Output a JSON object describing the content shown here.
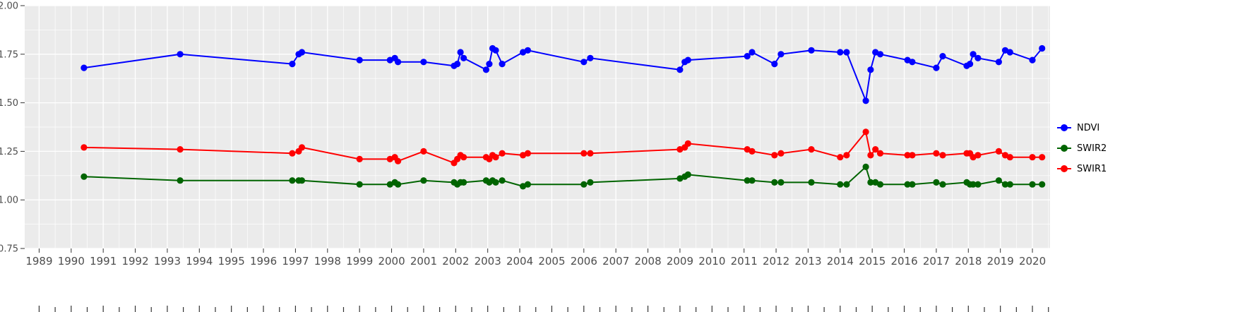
{
  "chart_data": {
    "type": "line",
    "title": "",
    "xlabel": "",
    "ylabel": "",
    "grid": true,
    "legend_position": "right",
    "panel_background": "#ebebeb",
    "figure_background": "#ffffff",
    "gridline_color": "#ffffff",
    "tick_color": "#333333",
    "tick_label_color": "#4d4d4d",
    "xlim": [
      1988.55,
      2020.55
    ],
    "ylim": [
      0.75,
      2.0
    ],
    "x_tick_values": [
      1989,
      1990,
      1991,
      1992,
      1993,
      1994,
      1995,
      1996,
      1997,
      1998,
      1999,
      2000,
      2001,
      2002,
      2003,
      2004,
      2005,
      2006,
      2007,
      2008,
      2009,
      2010,
      2011,
      2012,
      2013,
      2014,
      2015,
      2016,
      2017,
      2018,
      2019,
      2020
    ],
    "x_tick_labels": [
      "1989",
      "1990",
      "1991",
      "1992",
      "1993",
      "1994",
      "1995",
      "1996",
      "1997",
      "1998",
      "1999",
      "2000",
      "2001",
      "2002",
      "2003",
      "2004",
      "2005",
      "2006",
      "2007",
      "2008",
      "2009",
      "2010",
      "2011",
      "2012",
      "2013",
      "2014",
      "2015",
      "2016",
      "2017",
      "2018",
      "2019",
      "2020"
    ],
    "y_tick_values": [
      2.0,
      1.75,
      1.5,
      1.25,
      1.0,
      0.75
    ],
    "y_tick_labels": [
      "2.00",
      "1.75",
      "1.50",
      "1.25",
      "1.00",
      "0.75"
    ],
    "x": [
      1990.4,
      1993.4,
      1996.9,
      1997.1,
      1997.2,
      1999.0,
      1999.95,
      2000.1,
      2000.2,
      2001.0,
      2001.95,
      2002.05,
      2002.15,
      2002.25,
      2002.95,
      2003.05,
      2003.15,
      2003.25,
      2003.45,
      2004.1,
      2004.25,
      2006.0,
      2006.2,
      2009.0,
      2009.15,
      2009.25,
      2011.1,
      2011.25,
      2011.95,
      2012.15,
      2013.1,
      2014.0,
      2014.2,
      2014.8,
      2014.95,
      2015.1,
      2015.25,
      2016.1,
      2016.25,
      2017.0,
      2017.2,
      2017.95,
      2018.05,
      2018.15,
      2018.3,
      2018.95,
      2019.15,
      2019.3,
      2020.0,
      2020.3
    ],
    "series": [
      {
        "name": "NDVI",
        "color": "#0000ff",
        "values": [
          1.68,
          1.75,
          1.7,
          1.75,
          1.76,
          1.72,
          1.72,
          1.73,
          1.71,
          1.71,
          1.69,
          1.7,
          1.76,
          1.73,
          1.67,
          1.7,
          1.78,
          1.77,
          1.7,
          1.76,
          1.77,
          1.71,
          1.73,
          1.67,
          1.71,
          1.72,
          1.74,
          1.76,
          1.7,
          1.75,
          1.77,
          1.76,
          1.76,
          1.51,
          1.67,
          1.76,
          1.75,
          1.72,
          1.71,
          1.68,
          1.74,
          1.69,
          1.7,
          1.75,
          1.73,
          1.71,
          1.77,
          1.76,
          1.72,
          1.78
        ]
      },
      {
        "name": "SWIR2",
        "color": "#006400",
        "values": [
          1.12,
          1.1,
          1.1,
          1.1,
          1.1,
          1.08,
          1.08,
          1.09,
          1.08,
          1.1,
          1.09,
          1.08,
          1.09,
          1.09,
          1.1,
          1.09,
          1.1,
          1.09,
          1.1,
          1.07,
          1.08,
          1.08,
          1.09,
          1.11,
          1.12,
          1.13,
          1.1,
          1.1,
          1.09,
          1.09,
          1.09,
          1.08,
          1.08,
          1.17,
          1.09,
          1.09,
          1.08,
          1.08,
          1.08,
          1.09,
          1.08,
          1.09,
          1.08,
          1.08,
          1.08,
          1.1,
          1.08,
          1.08,
          1.08,
          1.08
        ]
      },
      {
        "name": "SWIR1",
        "color": "#ff0000",
        "values": [
          1.27,
          1.26,
          1.24,
          1.25,
          1.27,
          1.21,
          1.21,
          1.22,
          1.2,
          1.25,
          1.19,
          1.21,
          1.23,
          1.22,
          1.22,
          1.21,
          1.23,
          1.22,
          1.24,
          1.23,
          1.24,
          1.24,
          1.24,
          1.26,
          1.27,
          1.29,
          1.26,
          1.25,
          1.23,
          1.24,
          1.26,
          1.22,
          1.23,
          1.35,
          1.23,
          1.26,
          1.24,
          1.23,
          1.23,
          1.24,
          1.23,
          1.24,
          1.24,
          1.22,
          1.23,
          1.25,
          1.23,
          1.22,
          1.22,
          1.22
        ]
      }
    ]
  }
}
